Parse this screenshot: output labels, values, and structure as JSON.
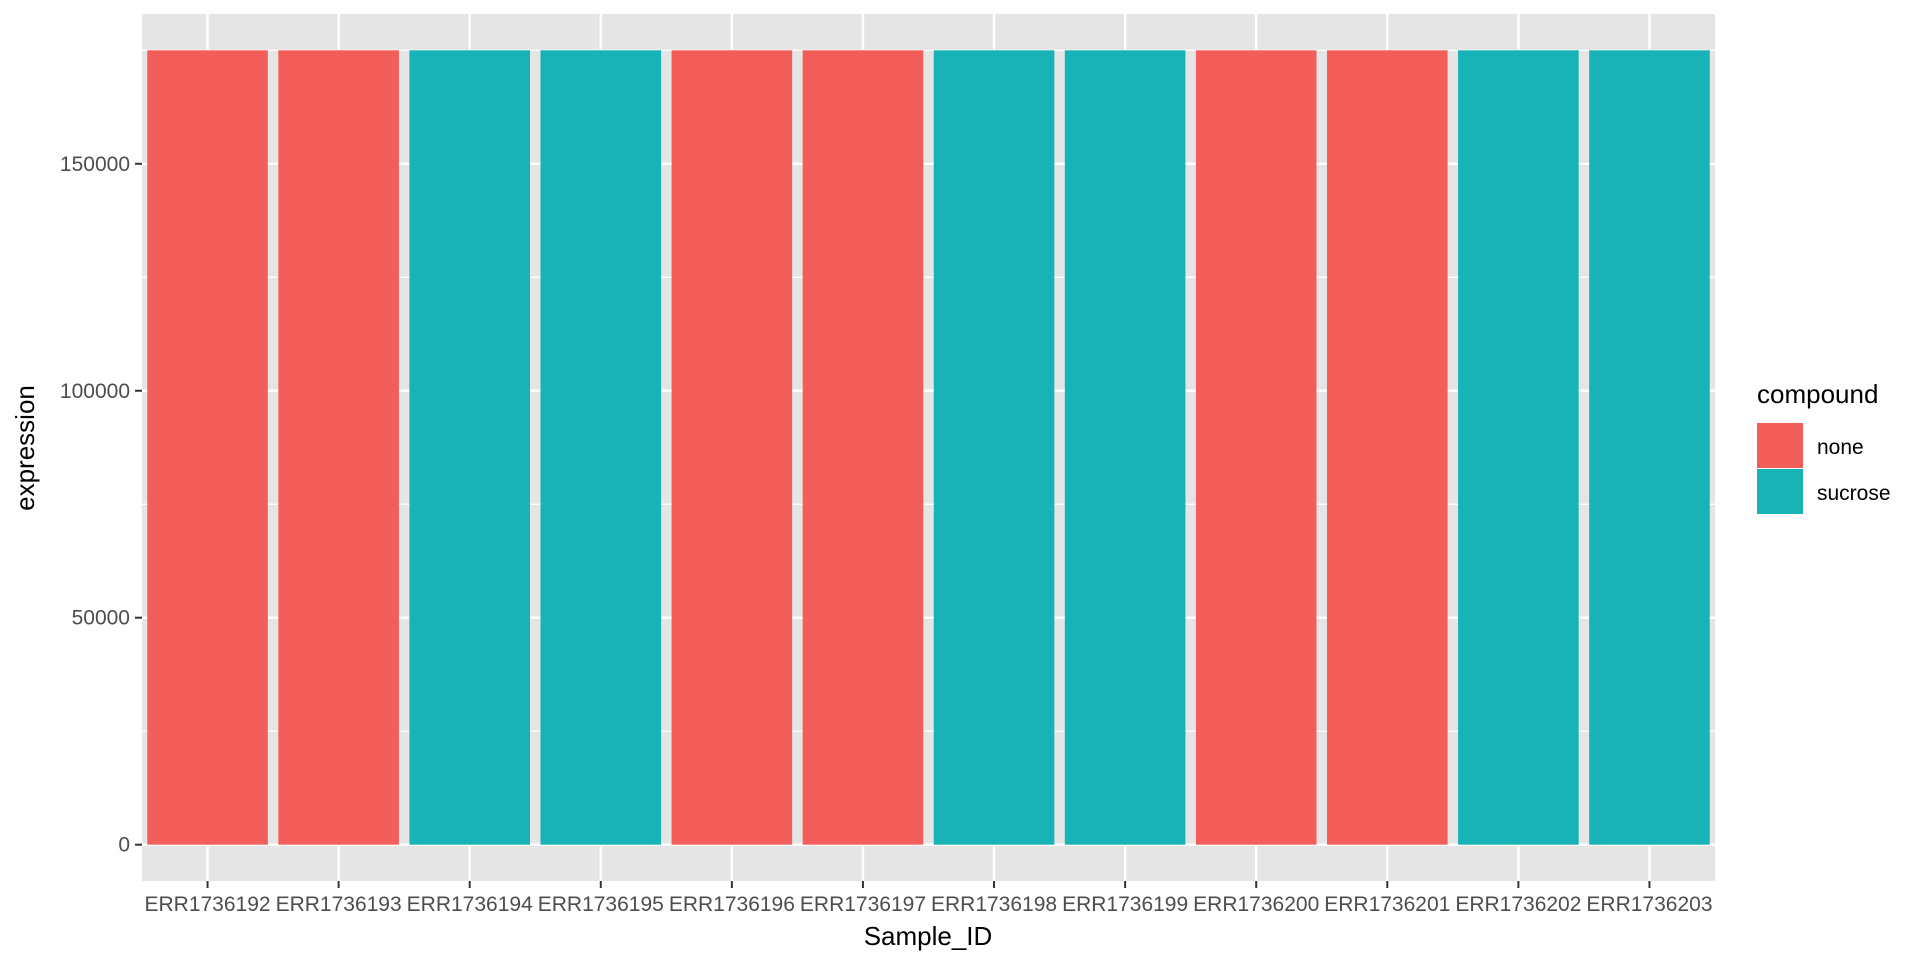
{
  "chart_data": {
    "type": "bar",
    "title": "",
    "xlabel": "Sample_ID",
    "ylabel": "expression",
    "categories": [
      "ERR1736192",
      "ERR1736193",
      "ERR1736194",
      "ERR1736195",
      "ERR1736196",
      "ERR1736197",
      "ERR1736198",
      "ERR1736199",
      "ERR1736200",
      "ERR1736201",
      "ERR1736202",
      "ERR1736203"
    ],
    "values": [
      175000,
      175000,
      175000,
      175000,
      175000,
      175000,
      175000,
      175000,
      175000,
      175000,
      175000,
      175000
    ],
    "fill_group": [
      "none",
      "none",
      "sucrose",
      "sucrose",
      "none",
      "none",
      "sucrose",
      "sucrose",
      "none",
      "none",
      "sucrose",
      "sucrose"
    ],
    "ylim": [
      -8000,
      183000
    ],
    "y_ticks": [
      0,
      50000,
      100000,
      150000
    ],
    "y_tick_labels": [
      "0",
      "50000",
      "100000",
      "150000"
    ],
    "grid": true,
    "legend": {
      "title": "compound",
      "placement": "right",
      "entries": [
        {
          "label": "none",
          "color": "#F35E5A"
        },
        {
          "label": "sucrose",
          "color": "#17B3B7"
        }
      ]
    },
    "colors": {
      "panel": "#E5E5E5",
      "grid": "#FFFFFF",
      "tick": "#333333"
    }
  }
}
